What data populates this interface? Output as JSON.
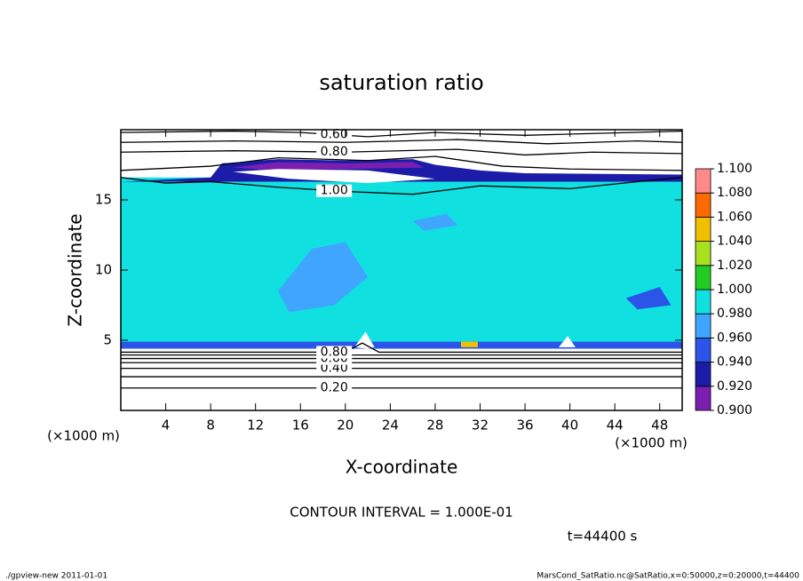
{
  "chart_data": {
    "type": "contour",
    "title": "saturation ratio",
    "xlabel": "X-coordinate",
    "ylabel": "Z-coordinate",
    "xunit": "(×1000 m)",
    "yunit": "(×1000 m)",
    "note": "CONTOUR INTERVAL = 1.000E-01",
    "time": "t=44400 s",
    "footer_left": "./gpview-new  2011-01-01",
    "footer_right": "MarsCond_SatRatio.nc@SatRatio,x=0:50000,z=0:20000,t=44400",
    "xlim": [
      0,
      50
    ],
    "ylim": [
      0,
      20
    ],
    "xticks": [
      4,
      8,
      12,
      16,
      20,
      24,
      28,
      32,
      36,
      40,
      44,
      48
    ],
    "yticks": [
      5,
      10,
      15
    ],
    "cticks": [
      {
        "value": 0.9,
        "label": "0.900"
      },
      {
        "value": 0.92,
        "label": "0.920"
      },
      {
        "value": 0.94,
        "label": "0.940"
      },
      {
        "value": 0.96,
        "label": "0.960"
      },
      {
        "value": 0.98,
        "label": "0.980"
      },
      {
        "value": 1.0,
        "label": "1.000"
      },
      {
        "value": 1.02,
        "label": "1.020"
      },
      {
        "value": 1.04,
        "label": "1.040"
      },
      {
        "value": 1.06,
        "label": "1.060"
      },
      {
        "value": 1.08,
        "label": "1.080"
      },
      {
        "value": 1.1,
        "label": "1.100"
      }
    ],
    "colors": [
      "#7a1fb0",
      "#1c1ca8",
      "#2a55e8",
      "#3fa5ff",
      "#10e0e0",
      "#22cc22",
      "#a8e01e",
      "#f0c000",
      "#ff6a00",
      "#ff8a8a"
    ],
    "regions": [
      {
        "value": 0.99,
        "x": [
          0,
          50,
          50,
          0
        ],
        "z": [
          4.4,
          4.4,
          16.6,
          16.6
        ]
      },
      {
        "value": 0.94,
        "x": [
          0,
          8,
          9,
          14,
          20,
          26,
          28,
          32,
          36,
          50,
          50,
          0
        ],
        "z": [
          16.3,
          16.6,
          17.6,
          17.9,
          17.8,
          17.9,
          17.5,
          17.1,
          16.9,
          16.8,
          16.3,
          16.3
        ]
      },
      {
        "value": 0.92,
        "x": [
          10,
          14,
          20,
          26,
          27,
          20,
          14
        ],
        "z": [
          17.3,
          17.7,
          17.6,
          17.7,
          17.3,
          17.2,
          17.1
        ]
      },
      {
        "value": 0.85,
        "x": [
          10,
          15,
          22,
          28,
          22,
          14
        ],
        "z": [
          17.0,
          16.5,
          16.2,
          16.5,
          17.1,
          17.2
        ]
      },
      {
        "value": 0.95,
        "x": [
          0,
          50,
          50,
          0
        ],
        "z": [
          4.4,
          4.4,
          4.9,
          4.9
        ]
      },
      {
        "value": 0.97,
        "x": [
          14,
          17,
          20,
          22,
          19,
          15
        ],
        "z": [
          8.5,
          11.5,
          12.0,
          9.5,
          7.5,
          7.0
        ]
      },
      {
        "value": 0.97,
        "x": [
          26,
          29,
          30,
          27
        ],
        "z": [
          13.5,
          14.0,
          13.2,
          12.8
        ]
      },
      {
        "value": 0.96,
        "x": [
          45,
          48,
          49,
          46
        ],
        "z": [
          8.0,
          8.8,
          7.5,
          7.2
        ]
      },
      {
        "value": 1.05,
        "x": [
          30.3,
          31.8,
          31.8,
          30.3
        ],
        "z": [
          4.5,
          4.5,
          4.9,
          4.9
        ]
      },
      {
        "value": 0.85,
        "x": [
          20.8,
          21.8,
          22.6,
          22.0
        ],
        "z": [
          4.5,
          5.6,
          4.5,
          4.4
        ]
      },
      {
        "value": 0.85,
        "x": [
          39.0,
          39.8,
          40.5
        ],
        "z": [
          4.5,
          5.3,
          4.5
        ]
      }
    ],
    "contours": [
      {
        "level": 0.2,
        "label": "0.20",
        "x": [
          0,
          50
        ],
        "z": [
          1.6,
          1.6
        ]
      },
      {
        "level": 0.3,
        "x": [
          0,
          50
        ],
        "z": [
          2.4,
          2.4
        ]
      },
      {
        "level": 0.4,
        "label": "0.40",
        "x": [
          0,
          50
        ],
        "z": [
          3.0,
          3.0
        ]
      },
      {
        "level": 0.5,
        "x": [
          0,
          50
        ],
        "z": [
          3.4,
          3.4
        ]
      },
      {
        "level": 0.6,
        "label": "0.60",
        "x": [
          0,
          50
        ],
        "z": [
          3.7,
          3.7
        ]
      },
      {
        "level": 0.7,
        "x": [
          0,
          50
        ],
        "z": [
          3.95,
          3.95
        ]
      },
      {
        "level": 0.8,
        "label": "0.80",
        "x": [
          0,
          20,
          21.5,
          23,
          50
        ],
        "z": [
          4.15,
          4.15,
          4.8,
          4.15,
          4.15
        ]
      },
      {
        "level": 1.0,
        "label": "1.00",
        "x": [
          0,
          4,
          8,
          14,
          20,
          26,
          32,
          40,
          46,
          50
        ],
        "z": [
          16.6,
          16.2,
          16.3,
          15.9,
          15.6,
          15.4,
          16.0,
          15.8,
          16.3,
          16.6
        ]
      },
      {
        "level": 0.9,
        "x": [
          0,
          8,
          14,
          22,
          28,
          34,
          40,
          50
        ],
        "z": [
          17.1,
          17.4,
          18.0,
          17.8,
          18.1,
          17.4,
          17.2,
          17.1
        ]
      },
      {
        "level": 0.8,
        "label": "0.80",
        "x": [
          0,
          10,
          20,
          30,
          36,
          42,
          50
        ],
        "z": [
          18.4,
          18.5,
          18.4,
          18.6,
          18.2,
          18.4,
          18.3
        ]
      },
      {
        "level": 0.7,
        "x": [
          0,
          10,
          20,
          30,
          38,
          46,
          50
        ],
        "z": [
          19.1,
          19.2,
          19.1,
          19.3,
          19.0,
          19.2,
          19.1
        ]
      },
      {
        "level": 0.6,
        "label": "0.60",
        "x": [
          0,
          10,
          16,
          22,
          28,
          36,
          50
        ],
        "z": [
          19.8,
          19.9,
          19.8,
          19.5,
          19.8,
          19.6,
          19.9
        ]
      }
    ]
  }
}
